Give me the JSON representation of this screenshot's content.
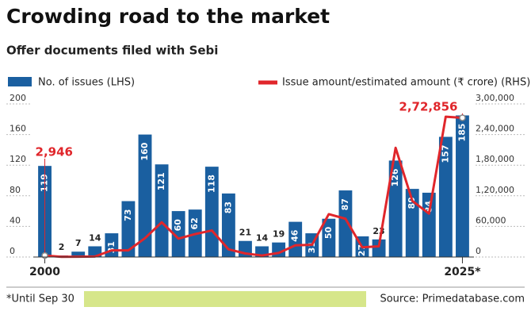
{
  "chart_data": {
    "type": "bar-line",
    "title": "Crowding road to the market",
    "subtitle": "Offer documents filed with Sebi",
    "categories": [
      "2000",
      null,
      null,
      null,
      null,
      null,
      null,
      null,
      null,
      null,
      null,
      null,
      null,
      null,
      null,
      null,
      null,
      null,
      null,
      null,
      null,
      null,
      null,
      null,
      null,
      "2025*"
    ],
    "series": [
      {
        "name": "No. of issues (LHS)",
        "color": "#1a5fa0",
        "type": "bar",
        "values": [
          119,
          2,
          7,
          14,
          31,
          73,
          160,
          121,
          60,
          62,
          118,
          83,
          21,
          14,
          19,
          46,
          31,
          50,
          87,
          27,
          23,
          126,
          89,
          84,
          157,
          185
        ]
      },
      {
        "name": "Issue amount/estimated amount (₹ crore) (RHS)",
        "color": "#e0262b",
        "type": "line",
        "axis": "y2",
        "values": [
          2946,
          300,
          500,
          1000,
          13000,
          13000,
          37000,
          68000,
          36000,
          45000,
          52000,
          15000,
          7000,
          3000,
          8000,
          23000,
          24000,
          84000,
          75000,
          19000,
          21000,
          214000,
          110000,
          85000,
          275000,
          272856
        ],
        "value_labels": [
          "2,946",
          null,
          null,
          null,
          null,
          null,
          null,
          null,
          null,
          null,
          null,
          null,
          null,
          null,
          null,
          null,
          null,
          null,
          null,
          null,
          null,
          null,
          null,
          null,
          null,
          "2,72,856"
        ]
      }
    ],
    "ylim": [
      0,
      200
    ],
    "yticks": [
      0,
      40,
      80,
      120,
      160,
      200
    ],
    "y2lim": [
      0,
      300000
    ],
    "y2ticks": [
      0,
      {
        "value": 60000,
        "label": "60,000"
      },
      {
        "value": 120000,
        "label": "1,20,000"
      },
      {
        "value": 180000,
        "label": "1,80,000"
      },
      {
        "value": 240000,
        "label": "2,40,000"
      },
      {
        "value": 300000,
        "label": "3,00,000"
      }
    ],
    "footnote": "*Until Sep 30",
    "source": "Source: Primedatabase.com"
  }
}
